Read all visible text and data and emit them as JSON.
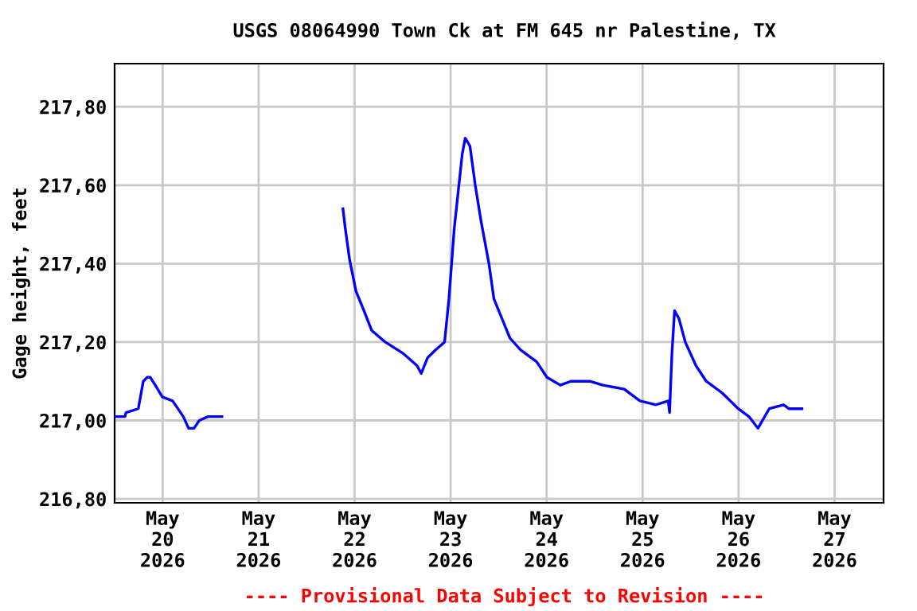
{
  "chart_data": {
    "type": "line",
    "title": "USGS 08064990 Town Ck at FM 645 nr Palestine, TX",
    "ylabel": "Gage height, feet",
    "series": [
      {
        "color": "#0000ff",
        "x": [
          "2026-05-19T12:20",
          "2026-05-19T14:35",
          "2026-05-19T14:50",
          "2026-05-19T17:55",
          "2026-05-19T19:10",
          "2026-05-19T20:10",
          "2026-05-19T20:55",
          "2026-05-19T22:10",
          "2026-05-19T23:55",
          "2026-05-20T02:30",
          "2026-05-20T05:10",
          "2026-05-20T06:30",
          "2026-05-20T07:50",
          "2026-05-20T09:10",
          "2026-05-20T11:25",
          "2026-05-20T14:50",
          "2026-05-21T06:00",
          "2026-05-21T21:05",
          "2026-05-21T21:40",
          "2026-05-21T22:45",
          "2026-05-22T00:20",
          "2026-05-22T02:20",
          "2026-05-22T04:15",
          "2026-05-22T07:40",
          "2026-05-22T12:15",
          "2026-05-22T15:35",
          "2026-05-22T16:40",
          "2026-05-22T18:15",
          "2026-05-22T20:15",
          "2026-05-22T22:30",
          "2026-05-22T23:35",
          "2026-05-23T00:55",
          "2026-05-23T02:55",
          "2026-05-23T03:40",
          "2026-05-23T04:50",
          "2026-05-23T06:10",
          "2026-05-23T07:35",
          "2026-05-23T09:35",
          "2026-05-23T10:50",
          "2026-05-23T12:50",
          "2026-05-23T14:50",
          "2026-05-23T17:30",
          "2026-05-23T21:30",
          "2026-05-24T00:05",
          "2026-05-24T03:25",
          "2026-05-24T06:05",
          "2026-05-24T10:45",
          "2026-05-24T14:05",
          "2026-05-24T19:25",
          "2026-05-24T23:20",
          "2026-05-25T03:20",
          "2026-05-25T06:25",
          "2026-05-25T06:45",
          "2026-05-25T07:20",
          "2026-05-25T08:00",
          "2026-05-25T09:05",
          "2026-05-25T10:40",
          "2026-05-25T13:20",
          "2026-05-25T15:55",
          "2026-05-25T19:55",
          "2026-05-25T23:55",
          "2026-05-26T02:35",
          "2026-05-26T04:50",
          "2026-05-26T07:40",
          "2026-05-26T11:15",
          "2026-05-26T12:35",
          "2026-05-26T15:50"
        ],
        "values": [
          217.01,
          217.01,
          217.02,
          217.03,
          217.1,
          217.11,
          217.11,
          217.09,
          217.06,
          217.05,
          217.01,
          216.98,
          216.98,
          217.0,
          217.01,
          217.01,
          null,
          217.54,
          217.49,
          217.41,
          217.33,
          217.28,
          217.23,
          217.2,
          217.17,
          217.14,
          217.12,
          217.16,
          217.18,
          217.2,
          217.31,
          217.49,
          217.68,
          217.72,
          217.7,
          217.6,
          217.51,
          217.4,
          217.31,
          217.26,
          217.21,
          217.18,
          217.15,
          217.11,
          217.09,
          217.1,
          217.1,
          217.09,
          217.08,
          217.05,
          217.04,
          217.05,
          217.02,
          217.17,
          217.28,
          217.26,
          217.2,
          217.14,
          217.1,
          217.07,
          217.03,
          217.01,
          216.98,
          217.03,
          217.04,
          217.03,
          217.03
        ]
      }
    ],
    "xlim": [
      "2026-05-19T12:00",
      "2026-05-27T12:15"
    ],
    "xticks": [
      {
        "value": "2026-05-20",
        "label": "May\n20\n2026"
      },
      {
        "value": "2026-05-21",
        "label": "May\n21\n2026"
      },
      {
        "value": "2026-05-22",
        "label": "May\n22\n2026"
      },
      {
        "value": "2026-05-23",
        "label": "May\n23\n2026"
      },
      {
        "value": "2026-05-24",
        "label": "May\n24\n2026"
      },
      {
        "value": "2026-05-25",
        "label": "May\n25\n2026"
      },
      {
        "value": "2026-05-26",
        "label": "May\n26\n2026"
      },
      {
        "value": "2026-05-27",
        "label": "May\n27\n2026"
      }
    ],
    "ylim": [
      216.79,
      217.91
    ],
    "yticks": [
      {
        "value": 216.8,
        "label": "216,80"
      },
      {
        "value": 217.0,
        "label": "217,00"
      },
      {
        "value": 217.2,
        "label": "217,20"
      },
      {
        "value": 217.4,
        "label": "217,40"
      },
      {
        "value": 217.6,
        "label": "217,60"
      },
      {
        "value": 217.8,
        "label": "217,80"
      }
    ],
    "grid": true,
    "legend": false,
    "annotations": [
      "---- Provisional Data Subject to Revision ----"
    ]
  }
}
